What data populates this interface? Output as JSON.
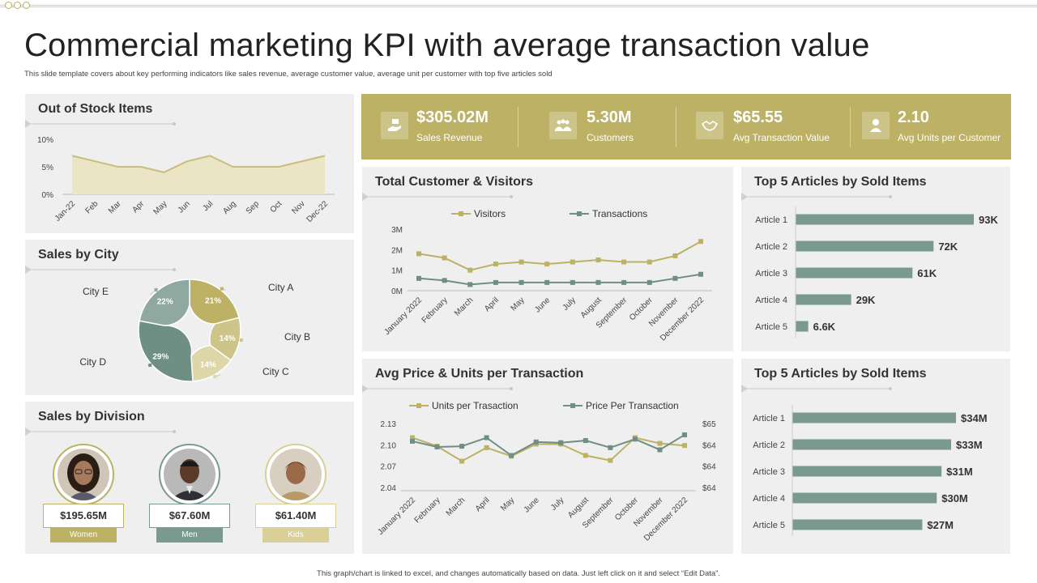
{
  "title": "Commercial marketing KPI with average transaction value",
  "subtitle": "This slide template covers about key performing indicators like sales revenue, average customer value, average unit per customer with top five articles sold",
  "footer": "This graph/chart is linked to excel, and changes automatically based on data. Just left click on it and select “Edit Data”.",
  "colors": {
    "olive": "#bcb164",
    "teal": "#7a9a90",
    "lightOlive": "#d8d096",
    "panel": "#efefef"
  },
  "kpis": [
    {
      "value": "$305.02M",
      "label": "Sales Revenue",
      "icon": "hand-money-icon"
    },
    {
      "value": "5.30M",
      "label": "Customers",
      "icon": "group-icon"
    },
    {
      "value": "$65.55",
      "label": "Avg Transaction Value",
      "icon": "handshake-icon"
    },
    {
      "value": "2.10",
      "label": "Avg Units per Customer",
      "icon": "user-icon"
    }
  ],
  "out_of_stock": {
    "title": "Out of Stock Items",
    "chart_data": {
      "type": "area",
      "categories": [
        "Jan-22",
        "Feb",
        "Mar",
        "Apr",
        "May",
        "Jun",
        "Jul",
        "Aug",
        "Sep",
        "Oct",
        "Nov",
        "Dec-22"
      ],
      "values": [
        7,
        6,
        5,
        5,
        4,
        6,
        7,
        5,
        5,
        5,
        6,
        7
      ],
      "yticks": [
        "10%",
        "5%",
        "0%"
      ],
      "ylim": [
        0,
        10
      ]
    }
  },
  "sales_by_city": {
    "title": "Sales by City",
    "chart_data": {
      "type": "pie",
      "slices": [
        {
          "name": "City A",
          "value": 21,
          "label": "21%",
          "color": "#bcb164"
        },
        {
          "name": "City B",
          "value": 14,
          "label": "14%",
          "color": "#cdc48a"
        },
        {
          "name": "City C",
          "value": 14,
          "label": "14%",
          "color": "#ddd6a8"
        },
        {
          "name": "City D",
          "value": 29,
          "label": "29%",
          "color": "#6f8f84"
        },
        {
          "name": "City E",
          "value": 22,
          "label": "22%",
          "color": "#8fa9a0"
        }
      ]
    }
  },
  "sales_by_division": {
    "title": "Sales by Division",
    "items": [
      {
        "value": "$195.65M",
        "label": "Women",
        "color": "#bcb164",
        "border": "#bcb164"
      },
      {
        "value": "$67.60M",
        "label": "Men",
        "color": "#7a9a90",
        "border": "#7a9a90"
      },
      {
        "value": "$61.40M",
        "label": "Kids",
        "color": "#d8d096",
        "border": "#d8d096"
      }
    ]
  },
  "visitors": {
    "title": "Total Customer & Visitors",
    "chart_data": {
      "type": "line",
      "categories": [
        "January 2022",
        "February",
        "March",
        "April",
        "May",
        "June",
        "July",
        "August",
        "September",
        "October",
        "November",
        "December 2022"
      ],
      "yticks": [
        "3M",
        "2M",
        "1M",
        "0M"
      ],
      "ylim": [
        0,
        3
      ],
      "series": [
        {
          "name": "Visitors",
          "color": "#bcb164",
          "values": [
            1.8,
            1.6,
            1.0,
            1.3,
            1.4,
            1.3,
            1.4,
            1.5,
            1.4,
            1.4,
            1.7,
            2.4
          ]
        },
        {
          "name": "Transactions",
          "color": "#6f8f84",
          "values": [
            0.6,
            0.5,
            0.3,
            0.4,
            0.4,
            0.4,
            0.4,
            0.4,
            0.4,
            0.4,
            0.6,
            0.8
          ]
        }
      ]
    }
  },
  "avg_price": {
    "title": "Avg Price & Units per Transaction",
    "chart_data": {
      "type": "line",
      "categories": [
        "January 2022",
        "February",
        "March",
        "April",
        "May",
        "June",
        "July",
        "August",
        "September",
        "October",
        "November",
        "December 2022"
      ],
      "yticks_left": [
        "2.13",
        "2.10",
        "2.07",
        "2.04"
      ],
      "yticks_right": [
        "$65",
        "$64",
        "$64",
        "$64"
      ],
      "series": [
        {
          "name": "Units per Trasaction",
          "color": "#bcb164",
          "values": [
            2.11,
            2.098,
            2.077,
            2.096,
            2.084,
            2.101,
            2.101,
            2.085,
            2.078,
            2.11,
            2.102,
            2.099
          ]
        },
        {
          "name": "Price Per Transaction",
          "color": "#6f8f84",
          "values": [
            2.105,
            2.097,
            2.098,
            2.11,
            2.085,
            2.104,
            2.103,
            2.106,
            2.096,
            2.108,
            2.093,
            2.114
          ]
        }
      ]
    }
  },
  "top_articles_1": {
    "title": "Top 5 Articles by Sold Items",
    "chart_data": {
      "type": "bar",
      "categories": [
        "Article 1",
        "Article 2",
        "Article 3",
        "Article 4",
        "Article 5"
      ],
      "values": [
        93,
        72,
        61,
        29,
        6.6
      ],
      "labels": [
        "93K",
        "72K",
        "61K",
        "29K",
        "6.6K"
      ]
    }
  },
  "top_articles_2": {
    "title": "Top 5 Articles by Sold Items",
    "chart_data": {
      "type": "bar",
      "categories": [
        "Article 1",
        "Article 2",
        "Article 3",
        "Article 4",
        "Article 5"
      ],
      "values": [
        34,
        33,
        31,
        30,
        27
      ],
      "labels": [
        "$34M",
        "$33M",
        "$31M",
        "$30M",
        "$27M"
      ]
    }
  }
}
